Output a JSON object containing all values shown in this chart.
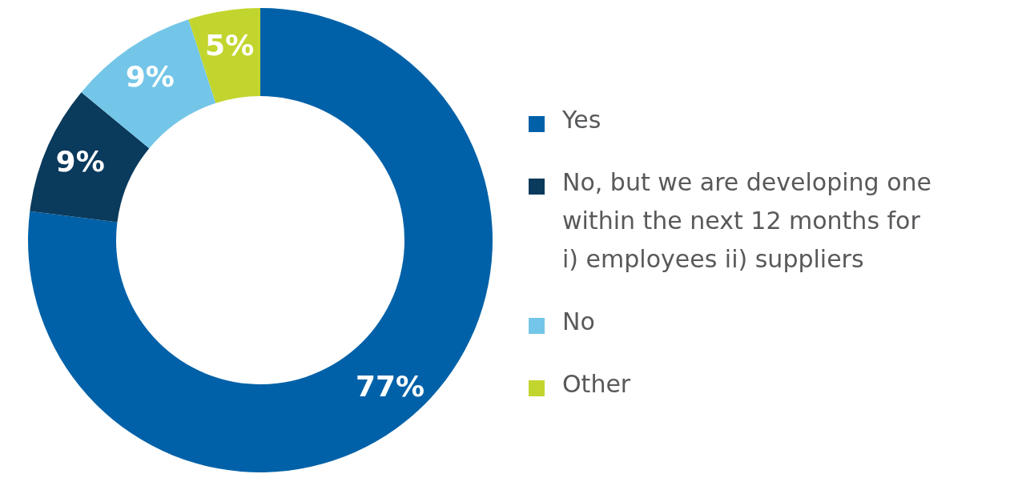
{
  "chart_data": {
    "type": "donut",
    "categories": [
      "Yes",
      "No, but we are developing one within the next 12 months for i) employees ii) suppliers",
      "No",
      "Other"
    ],
    "values": [
      77,
      9,
      9,
      5
    ],
    "colors": [
      "#0061a8",
      "#0a3a5c",
      "#74c6e8",
      "#c2d52e"
    ],
    "value_labels": [
      "77%",
      "9%",
      "9%",
      "5%"
    ],
    "legend": "right"
  }
}
